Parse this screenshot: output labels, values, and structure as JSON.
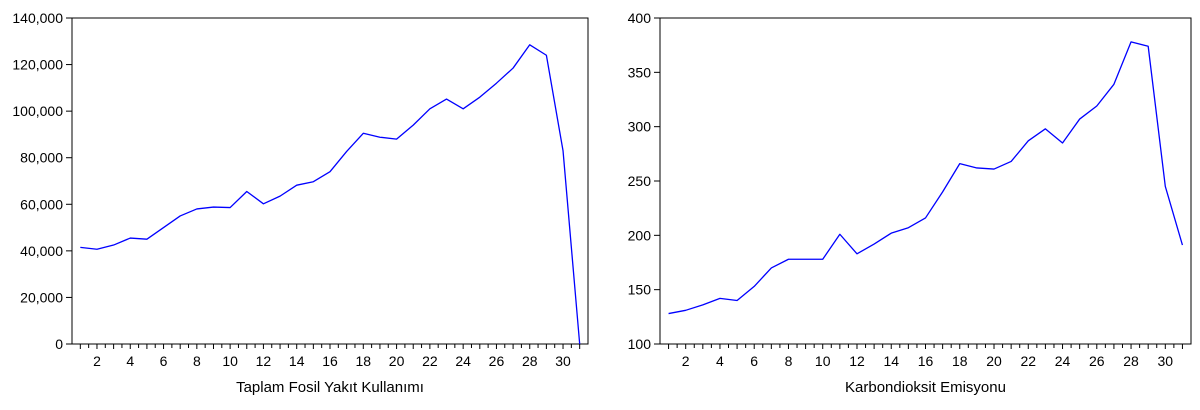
{
  "chart_data": [
    {
      "type": "line",
      "title": "",
      "xlabel": "Taplam Fosil Yakıt Kullanımı",
      "ylabel": "",
      "x": [
        1,
        2,
        3,
        4,
        5,
        6,
        7,
        8,
        9,
        10,
        11,
        12,
        13,
        14,
        15,
        16,
        17,
        18,
        19,
        20,
        21,
        22,
        23,
        24,
        25,
        26,
        27,
        28,
        29,
        30,
        31
      ],
      "xticks": [
        2,
        4,
        6,
        8,
        10,
        12,
        14,
        16,
        18,
        20,
        22,
        24,
        26,
        28,
        30
      ],
      "xlim": [
        0.5,
        31.5
      ],
      "ylim": [
        0,
        140000
      ],
      "yticks": [
        0,
        20000,
        40000,
        60000,
        80000,
        100000,
        120000,
        140000
      ],
      "ytick_labels": [
        "0",
        "20,000",
        "40,000",
        "60,000",
        "80,000",
        "100,000",
        "120,000",
        "140,000"
      ],
      "grid": false,
      "color": "#0000ff",
      "series": [
        {
          "values": [
            41500,
            40700,
            42500,
            45500,
            45000,
            50000,
            55000,
            58000,
            58800,
            58600,
            65500,
            60200,
            63500,
            68200,
            69700,
            74000,
            82700,
            90500,
            88800,
            88000,
            94000,
            101000,
            105200,
            101000,
            106000,
            112000,
            118500,
            128500,
            124000,
            83000,
            0
          ]
        }
      ]
    },
    {
      "type": "line",
      "title": "",
      "xlabel": "Karbondioksit Emisyonu",
      "ylabel": "",
      "x": [
        1,
        2,
        3,
        4,
        5,
        6,
        7,
        8,
        9,
        10,
        11,
        12,
        13,
        14,
        15,
        16,
        17,
        18,
        19,
        20,
        21,
        22,
        23,
        24,
        25,
        26,
        27,
        28,
        29,
        30,
        31
      ],
      "xticks": [
        2,
        4,
        6,
        8,
        10,
        12,
        14,
        16,
        18,
        20,
        22,
        24,
        26,
        28,
        30
      ],
      "xlim": [
        0.5,
        31.5
      ],
      "ylim": [
        100,
        400
      ],
      "yticks": [
        100,
        150,
        200,
        250,
        300,
        350,
        400
      ],
      "ytick_labels": [
        "100",
        "150",
        "200",
        "250",
        "300",
        "350",
        "400"
      ],
      "grid": false,
      "color": "#0000ff",
      "series": [
        {
          "values": [
            128,
            131,
            136,
            142,
            140,
            153,
            170,
            178,
            178,
            178,
            201,
            183,
            192,
            202,
            207,
            216,
            240,
            266,
            262,
            261,
            268,
            287,
            298,
            285,
            307,
            319,
            339,
            378,
            374,
            245,
            191
          ]
        }
      ]
    }
  ]
}
